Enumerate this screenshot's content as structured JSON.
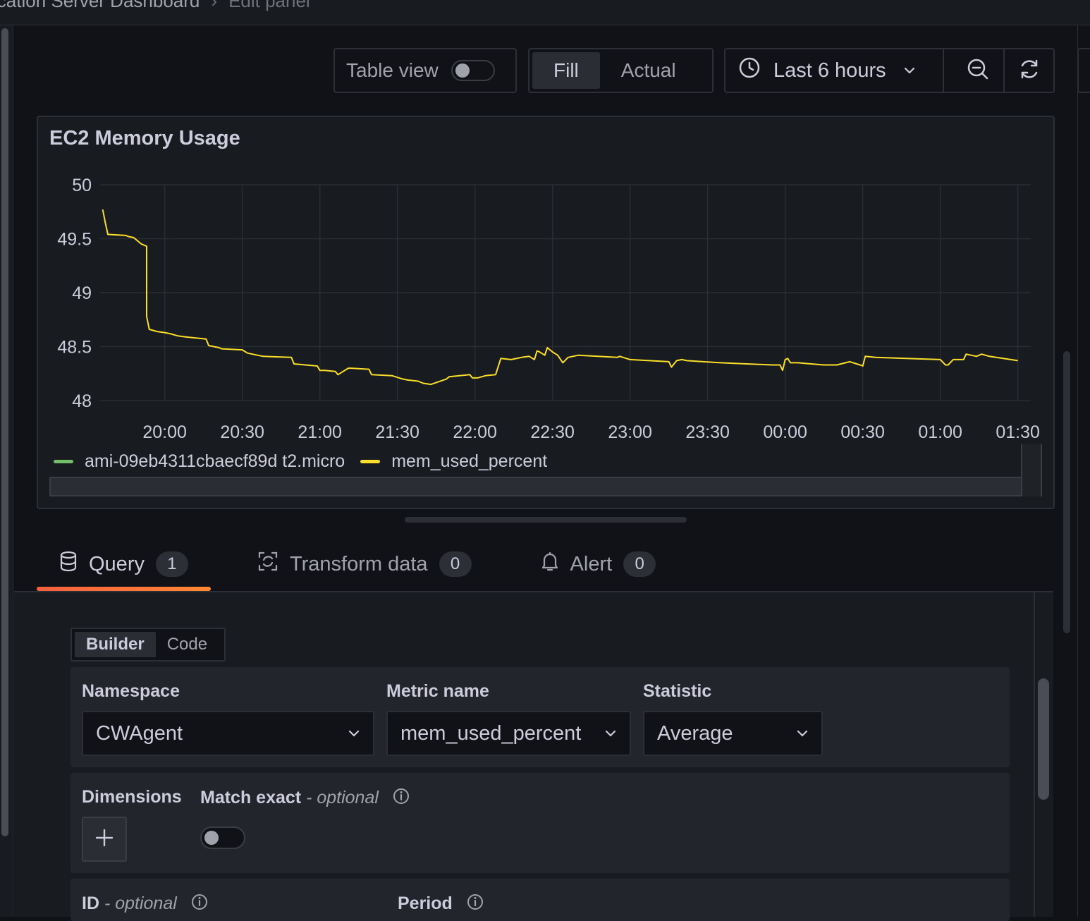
{
  "breadcrumb": {
    "dashboard": "ication Server Dashboard",
    "separator": "›",
    "current": "Edit panel"
  },
  "toolbar": {
    "table_view_label": "Table view",
    "table_view_on": false,
    "fill_label": "Fill",
    "actual_label": "Actual",
    "time_range_label": "Last 6 hours"
  },
  "icons": {
    "clock": "clock-icon",
    "chevron": "chevron-down-icon",
    "zoom_out": "zoom-out-icon",
    "refresh": "refresh-icon",
    "database": "database-icon",
    "transform": "transform-icon",
    "bell": "bell-icon",
    "plus": "plus-icon",
    "info": "info-icon"
  },
  "panel": {
    "title": "EC2 Memory Usage"
  },
  "chart_data": {
    "type": "line",
    "title": "EC2 Memory Usage",
    "xlabel": "",
    "ylabel": "",
    "ylim": [
      48,
      50
    ],
    "y_ticks": [
      "50",
      "49.5",
      "49",
      "48.5",
      "48"
    ],
    "x_ticks": [
      "20:00",
      "20:30",
      "21:00",
      "21:30",
      "22:00",
      "22:30",
      "23:00",
      "23:30",
      "00:00",
      "00:30",
      "01:00",
      "01:30"
    ],
    "x_ticks_minutes": [
      0,
      30,
      60,
      90,
      120,
      150,
      180,
      210,
      240,
      270,
      300,
      330
    ],
    "xlim_minutes": [
      -25,
      335
    ],
    "grid": true,
    "legend_position": "bottom-left",
    "series": [
      {
        "name": "ami-09eb4311cbaecf89d t2.micro",
        "color": "#73bf69",
        "values": []
      },
      {
        "name": "mem_used_percent",
        "color": "#fade2a",
        "x_minutes": [
          -24,
          -23,
          -22,
          -15,
          -14,
          -12,
          -11,
          -10,
          -9,
          -7,
          -7,
          -6,
          -3,
          0,
          2,
          5,
          8,
          16,
          17,
          21,
          22,
          30,
          32,
          38,
          49,
          50,
          59,
          60,
          62,
          66,
          67,
          71,
          72,
          79,
          80,
          88,
          92,
          94,
          98,
          100,
          103,
          109,
          110,
          118,
          119,
          121,
          124,
          128,
          130,
          134,
          138,
          141,
          143,
          144,
          145,
          147,
          148,
          150,
          152,
          154,
          156,
          160,
          175,
          176,
          180,
          195,
          196,
          198,
          200,
          202,
          215,
          225,
          235,
          238,
          239,
          240,
          241,
          242,
          245,
          250,
          255,
          260,
          265,
          269,
          270,
          271,
          275,
          300,
          302,
          303,
          305,
          309,
          310,
          314,
          316,
          319,
          330
        ],
        "values": [
          49.77,
          49.65,
          49.54,
          49.53,
          49.52,
          49.51,
          49.49,
          49.47,
          49.45,
          49.43,
          48.78,
          48.66,
          48.64,
          48.63,
          48.62,
          48.6,
          48.59,
          48.57,
          48.51,
          48.49,
          48.48,
          48.47,
          48.44,
          48.41,
          48.4,
          48.34,
          48.32,
          48.28,
          48.28,
          48.27,
          48.24,
          48.3,
          48.3,
          48.29,
          48.24,
          48.23,
          48.2,
          48.19,
          48.18,
          48.16,
          48.15,
          48.2,
          48.22,
          48.24,
          48.21,
          48.21,
          48.23,
          48.24,
          48.39,
          48.38,
          48.4,
          48.41,
          48.38,
          48.46,
          48.45,
          48.42,
          48.49,
          48.45,
          48.42,
          48.35,
          48.4,
          48.42,
          48.4,
          48.41,
          48.38,
          48.36,
          48.31,
          48.37,
          48.38,
          48.37,
          48.35,
          48.34,
          48.33,
          48.33,
          48.28,
          48.38,
          48.39,
          48.35,
          48.35,
          48.34,
          48.33,
          48.33,
          48.36,
          48.33,
          48.32,
          48.41,
          48.4,
          48.38,
          48.33,
          48.33,
          48.38,
          48.38,
          48.43,
          48.41,
          48.43,
          48.41,
          48.37
        ]
      }
    ]
  },
  "legend": [
    {
      "label": "ami-09eb4311cbaecf89d t2.micro",
      "color": "#73bf69"
    },
    {
      "label": "mem_used_percent",
      "color": "#fade2a"
    }
  ],
  "tabs": [
    {
      "label": "Query",
      "count": "1",
      "active": true
    },
    {
      "label": "Transform data",
      "count": "0",
      "active": false
    },
    {
      "label": "Alert",
      "count": "0",
      "active": false
    }
  ],
  "query_editor": {
    "mode_builder": "Builder",
    "mode_code": "Code",
    "namespace": {
      "label": "Namespace",
      "value": "CWAgent"
    },
    "metric_name": {
      "label": "Metric name",
      "value": "mem_used_percent"
    },
    "statistic": {
      "label": "Statistic",
      "value": "Average"
    },
    "dimensions_label": "Dimensions",
    "match_exact_label": "Match exact",
    "optional_suffix": "- optional",
    "match_exact_on": false,
    "id_label": "ID",
    "period_label": "Period"
  },
  "colors": {
    "accent_tab": "#f55f3e",
    "series_yellow": "#fade2a",
    "series_green": "#73bf69"
  }
}
